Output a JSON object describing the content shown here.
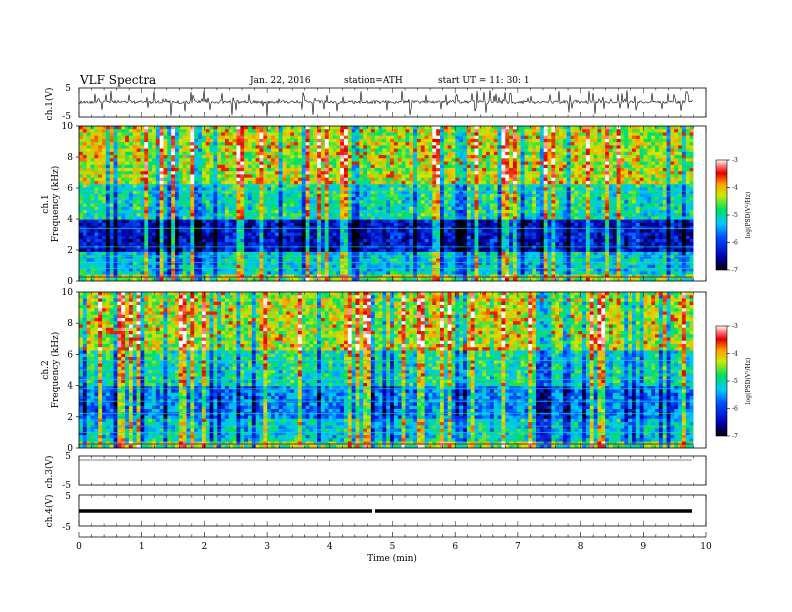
{
  "header": {
    "title": "VLF  Spectra",
    "date": "Jan. 22, 2016",
    "station": "station=ATH",
    "start": "start  UT =    11: 30: 1"
  },
  "chart_data": {
    "type": "heatmap",
    "x_axis": {
      "label": "Time  (min)",
      "range": [
        0,
        10
      ],
      "ticks": [
        "0",
        "1",
        "2",
        "3",
        "4",
        "5",
        "6",
        "7",
        "8",
        "9",
        "10"
      ],
      "data_end": 9.8
    },
    "panels": [
      {
        "id": "ch1_wave",
        "kind": "waveform",
        "ylabel": "ch.1(V)",
        "yticks": [
          "5",
          "-5"
        ],
        "yrange": [
          -5,
          5
        ]
      },
      {
        "id": "ch1_spec",
        "kind": "spectrogram",
        "ylabel_channel": "ch.1",
        "ylabel": "Frequency (kHz)",
        "yticks": [
          "0",
          "2",
          "4",
          "6",
          "8",
          "10"
        ],
        "yrange": [
          0,
          10
        ],
        "colorbar": {
          "label": "log(PSD(V²/Hz)",
          "ticks": [
            "-3",
            "-4",
            "-5",
            "-6",
            "-7"
          ],
          "range": [
            -7,
            -3
          ]
        }
      },
      {
        "id": "ch2_spec",
        "kind": "spectrogram",
        "ylabel_channel": "ch.2",
        "ylabel": "Frequency (kHz)",
        "yticks": [
          "0",
          "2",
          "4",
          "6",
          "8",
          "10"
        ],
        "yrange": [
          0,
          10
        ],
        "colorbar": {
          "label": "log(PSD(V²/Hz)",
          "ticks": [
            "-3",
            "-4",
            "-5",
            "-6",
            "-7"
          ],
          "range": [
            -7,
            -3
          ]
        }
      },
      {
        "id": "ch3_wave",
        "kind": "waveform",
        "ylabel": "ch.3(V)",
        "yticks": [
          "5",
          "-5"
        ],
        "yrange": [
          -5,
          5
        ]
      },
      {
        "id": "ch4_wave",
        "kind": "waveform",
        "ylabel": "ch.4(V)",
        "yticks": [
          "5",
          "-5"
        ],
        "yrange": [
          -5,
          5
        ],
        "level": -1,
        "gap_at_min": 4.7
      }
    ]
  }
}
